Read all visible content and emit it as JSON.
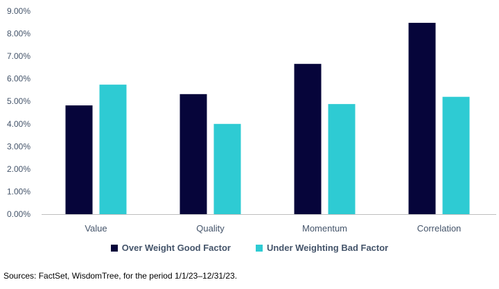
{
  "chart_data": {
    "type": "bar",
    "categories": [
      "Value",
      "Quality",
      "Momentum",
      "Correlation"
    ],
    "series": [
      {
        "name": "Over Weight Good Factor",
        "color": "#06053a",
        "values": [
          4.82,
          5.32,
          6.66,
          8.48
        ]
      },
      {
        "name": "Under Weighting Bad Factor",
        "color": "#2ecbd3",
        "values": [
          5.74,
          4.0,
          4.88,
          5.2
        ]
      }
    ],
    "ylim": [
      0,
      9
    ],
    "yticks": [
      "0.00%",
      "1.00%",
      "2.00%",
      "3.00%",
      "4.00%",
      "5.00%",
      "6.00%",
      "7.00%",
      "8.00%",
      "9.00%"
    ],
    "grid": false,
    "legend": "bottom"
  },
  "source": "Sources: FactSet, WisdomTree, for the period 1/1/23–12/31/23."
}
